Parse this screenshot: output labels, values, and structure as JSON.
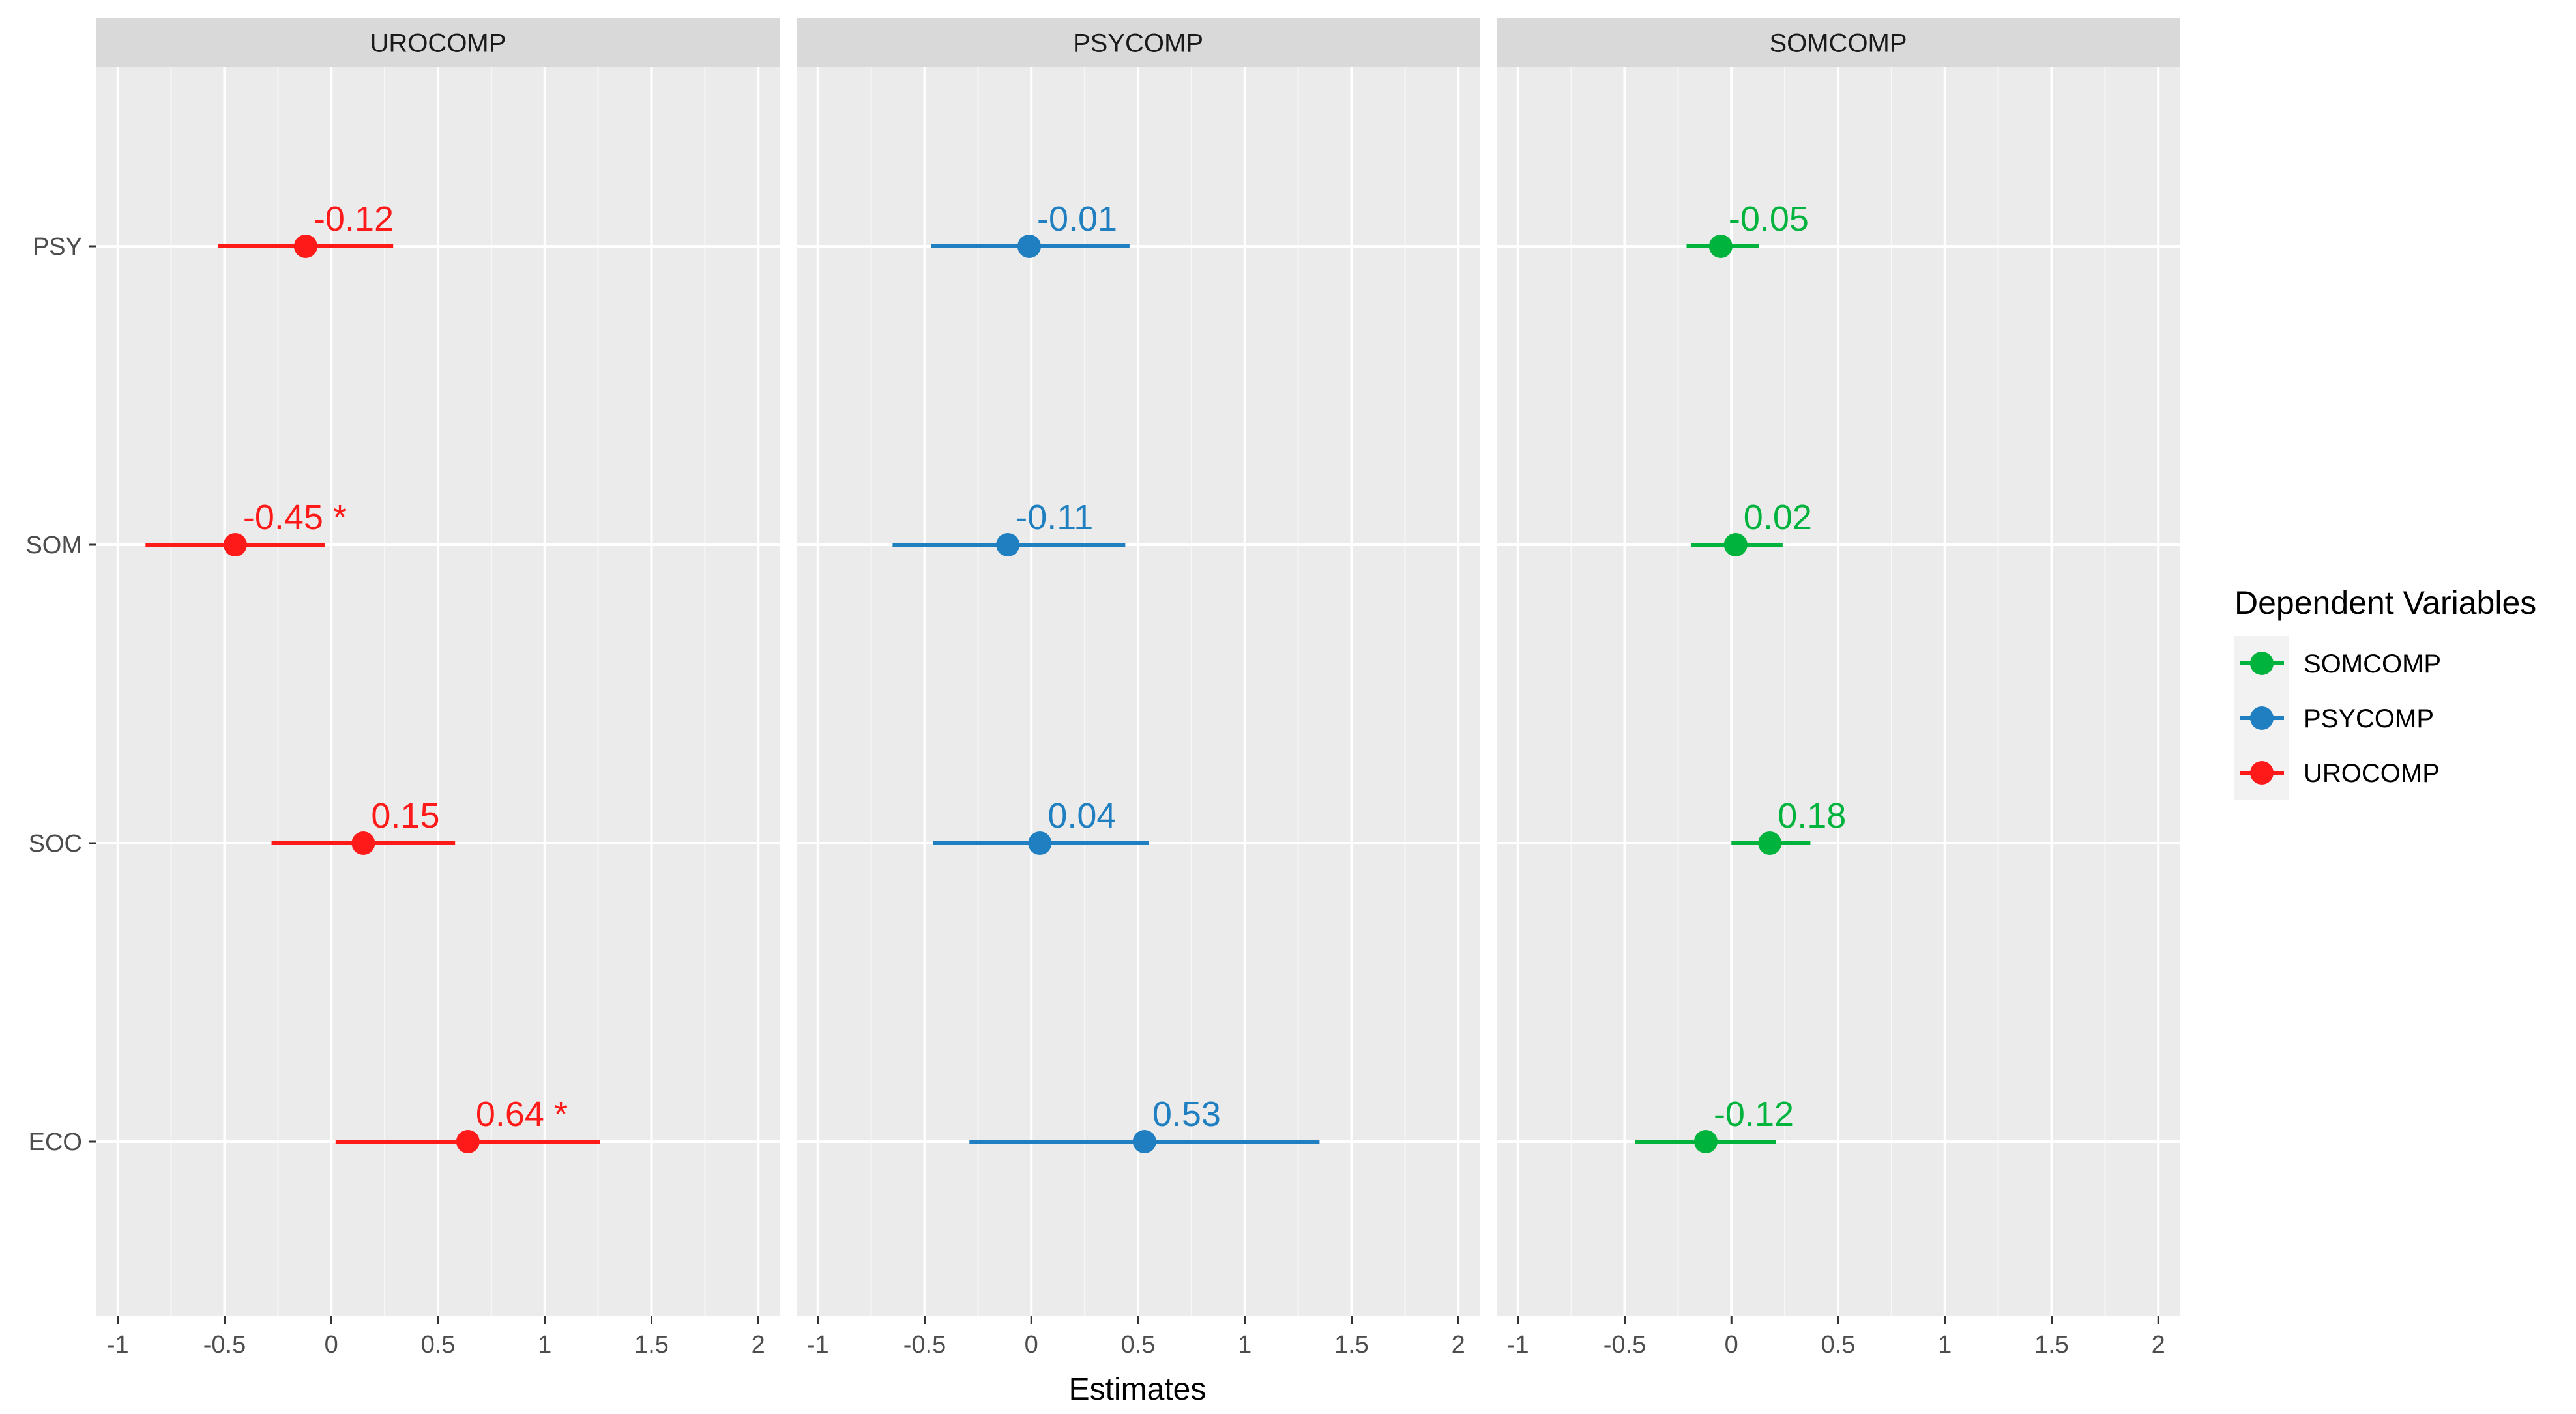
{
  "chart_data": {
    "type": "scatter",
    "subtype": "coefficient-plot-with-intervals",
    "xlabel": "Estimates",
    "ylabel": "",
    "xlim": [
      -1.1,
      2.1
    ],
    "x_ticks": [
      -1,
      -0.5,
      0,
      0.5,
      1,
      1.5,
      2
    ],
    "x_tick_labels": [
      "-1",
      "-0.5",
      "0",
      "0.5",
      "1",
      "1.5",
      "2"
    ],
    "y_categories": [
      "PSY",
      "SOM",
      "SOC",
      "ECO"
    ],
    "grid": true,
    "legend": {
      "title": "Dependent Variables",
      "position": "right",
      "entries": [
        {
          "name": "SOMCOMP",
          "color": "#00b33c"
        },
        {
          "name": "PSYCOMP",
          "color": "#1f7fc0"
        },
        {
          "name": "UROCOMP",
          "color": "#ff1a1a"
        }
      ]
    },
    "panels": [
      {
        "title": "UROCOMP",
        "color": "#ff1a1a",
        "points": [
          {
            "category": "PSY",
            "estimate": -0.12,
            "ci_low": -0.53,
            "ci_high": 0.29,
            "label": "-0.12"
          },
          {
            "category": "SOM",
            "estimate": -0.45,
            "ci_low": -0.87,
            "ci_high": -0.03,
            "label": "-0.45 *"
          },
          {
            "category": "SOC",
            "estimate": 0.15,
            "ci_low": -0.28,
            "ci_high": 0.58,
            "label": "0.15"
          },
          {
            "category": "ECO",
            "estimate": 0.64,
            "ci_low": 0.02,
            "ci_high": 1.26,
            "label": "0.64 *"
          }
        ]
      },
      {
        "title": "PSYCOMP",
        "color": "#1f7fc0",
        "points": [
          {
            "category": "PSY",
            "estimate": -0.01,
            "ci_low": -0.47,
            "ci_high": 0.46,
            "label": "-0.01"
          },
          {
            "category": "SOM",
            "estimate": -0.11,
            "ci_low": -0.65,
            "ci_high": 0.44,
            "label": "-0.11"
          },
          {
            "category": "SOC",
            "estimate": 0.04,
            "ci_low": -0.46,
            "ci_high": 0.55,
            "label": "0.04"
          },
          {
            "category": "ECO",
            "estimate": 0.53,
            "ci_low": -0.29,
            "ci_high": 1.35,
            "label": "0.53"
          }
        ]
      },
      {
        "title": "SOMCOMP",
        "color": "#00b33c",
        "points": [
          {
            "category": "PSY",
            "estimate": -0.05,
            "ci_low": -0.21,
            "ci_high": 0.13,
            "label": "-0.05"
          },
          {
            "category": "SOM",
            "estimate": 0.02,
            "ci_low": -0.19,
            "ci_high": 0.24,
            "label": "0.02"
          },
          {
            "category": "SOC",
            "estimate": 0.18,
            "ci_low": 0.0,
            "ci_high": 0.37,
            "label": "0.18"
          },
          {
            "category": "ECO",
            "estimate": -0.12,
            "ci_low": -0.45,
            "ci_high": 0.21,
            "label": "-0.12"
          }
        ]
      }
    ]
  }
}
